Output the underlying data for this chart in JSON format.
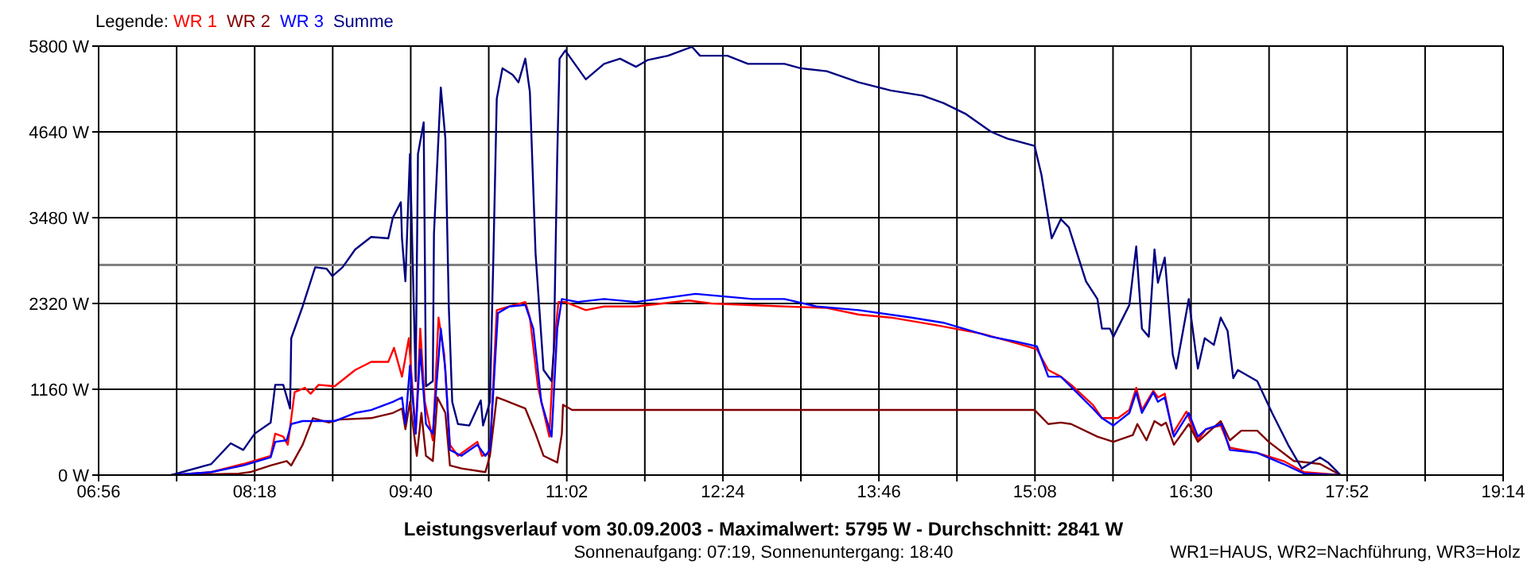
{
  "chart_data": {
    "type": "line",
    "title": "Leistungsverlauf vom 30.09.2003 - Maximalwert: 5795 W - Durchschnitt: 2841 W",
    "subtitle": "Sonnenaufgang: 07:19, Sonnenuntergang: 18:40",
    "legend_title": "Legende:",
    "legend": "top left",
    "grid": true,
    "annotations": [
      "WR1=HAUS, WR2=Nachführung, WR3=Holz"
    ],
    "xlim": [
      6.9333,
      19.2333
    ],
    "xticks": [
      {
        "value": 6.9333,
        "label": "06:56"
      },
      {
        "value": 7.6167,
        "label": null
      },
      {
        "value": 8.3,
        "label": "08:18"
      },
      {
        "value": 8.9833,
        "label": null
      },
      {
        "value": 9.6667,
        "label": "09:40"
      },
      {
        "value": 10.35,
        "label": null
      },
      {
        "value": 11.0333,
        "label": "11:02"
      },
      {
        "value": 11.7167,
        "label": null
      },
      {
        "value": 12.4,
        "label": "12:24"
      },
      {
        "value": 13.0833,
        "label": null
      },
      {
        "value": 13.7667,
        "label": "13:46"
      },
      {
        "value": 14.45,
        "label": null
      },
      {
        "value": 15.1333,
        "label": "15:08"
      },
      {
        "value": 15.8167,
        "label": null
      },
      {
        "value": 16.5,
        "label": "16:30"
      },
      {
        "value": 17.1833,
        "label": null
      },
      {
        "value": 17.8667,
        "label": "17:52"
      },
      {
        "value": 18.55,
        "label": null
      },
      {
        "value": 19.2333,
        "label": "19:14"
      }
    ],
    "ylim": [
      0,
      5800
    ],
    "yticks": [
      {
        "value": 0,
        "label": "0 W"
      },
      {
        "value": 1160,
        "label": "1160 W"
      },
      {
        "value": 2320,
        "label": "2320 W"
      },
      {
        "value": 3480,
        "label": "3480 W"
      },
      {
        "value": 4640,
        "label": "4640 W"
      },
      {
        "value": 5800,
        "label": "5800 W"
      }
    ],
    "ref_lines": [
      {
        "axis": "y",
        "value": 2841,
        "color": "#808080"
      }
    ],
    "series": [
      {
        "name": "WR 1",
        "color": "#ff0000",
        "x": [
          7.57,
          7.92,
          8.2,
          8.44,
          8.48,
          8.55,
          8.59,
          8.65,
          8.74,
          8.79,
          8.86,
          9.0,
          9.18,
          9.32,
          9.47,
          9.52,
          9.59,
          9.65,
          9.71,
          9.75,
          9.79,
          9.86,
          9.91,
          9.96,
          10.01,
          10.08,
          10.25,
          10.29,
          10.36,
          10.42,
          10.53,
          10.67,
          10.71,
          10.78,
          10.88,
          10.92,
          10.96,
          11.02,
          11.2,
          11.36,
          11.64,
          12.1,
          12.3,
          12.94,
          13.31,
          13.59,
          13.87,
          14.29,
          14.67,
          14.98,
          15.15,
          15.25,
          15.36,
          15.45,
          15.64,
          15.72,
          15.86,
          15.96,
          16.02,
          16.07,
          16.17,
          16.21,
          16.27,
          16.34,
          16.46,
          16.56,
          16.63,
          16.76,
          16.84,
          17.08,
          17.31,
          17.49,
          17.81
        ],
        "values": [
          0,
          40,
          150,
          260,
          560,
          520,
          410,
          1120,
          1180,
          1100,
          1220,
          1200,
          1420,
          1530,
          1530,
          1720,
          1330,
          1850,
          560,
          1980,
          990,
          470,
          2130,
          1630,
          410,
          260,
          450,
          260,
          300,
          2230,
          2280,
          2340,
          2130,
          1200,
          520,
          1700,
          2340,
          2340,
          2230,
          2280,
          2280,
          2360,
          2320,
          2280,
          2260,
          2170,
          2130,
          2020,
          1910,
          1780,
          1700,
          1420,
          1330,
          1220,
          950,
          770,
          770,
          880,
          1180,
          880,
          1140,
          1050,
          1100,
          560,
          860,
          470,
          620,
          670,
          370,
          300,
          190,
          40,
          0
        ]
      },
      {
        "name": "WR 2",
        "color": "#800000",
        "x": [
          7.57,
          8.16,
          8.26,
          8.44,
          8.58,
          8.62,
          8.72,
          8.81,
          8.95,
          9.04,
          9.32,
          9.51,
          9.59,
          9.62,
          9.66,
          9.72,
          9.76,
          9.8,
          9.86,
          9.9,
          9.97,
          10.01,
          10.11,
          10.32,
          10.36,
          10.42,
          10.49,
          10.67,
          10.76,
          10.83,
          10.95,
          10.99,
          11.0,
          11.08,
          11.36,
          12.34,
          13.87,
          15.13,
          15.25,
          15.36,
          15.45,
          15.68,
          15.82,
          15.99,
          16.03,
          16.11,
          16.18,
          16.24,
          16.28,
          16.35,
          16.48,
          16.56,
          16.76,
          16.84,
          16.94,
          17.08,
          17.18,
          17.4,
          17.63,
          17.81
        ],
        "values": [
          0,
          20,
          40,
          130,
          190,
          130,
          410,
          770,
          710,
          750,
          770,
          840,
          900,
          620,
          990,
          260,
          840,
          260,
          190,
          1050,
          840,
          130,
          90,
          40,
          260,
          1050,
          1010,
          900,
          560,
          260,
          170,
          560,
          950,
          880,
          880,
          880,
          880,
          880,
          690,
          710,
          690,
          520,
          450,
          540,
          690,
          470,
          730,
          670,
          710,
          410,
          690,
          450,
          730,
          470,
          600,
          600,
          450,
          190,
          150,
          0
        ]
      },
      {
        "name": "WR 3",
        "color": "#0000ff",
        "x": [
          7.57,
          7.92,
          8.2,
          8.44,
          8.48,
          8.58,
          8.62,
          8.72,
          8.86,
          9.0,
          9.18,
          9.32,
          9.51,
          9.59,
          9.62,
          9.66,
          9.71,
          9.75,
          9.8,
          9.86,
          9.93,
          9.97,
          10.01,
          10.11,
          10.25,
          10.32,
          10.36,
          10.43,
          10.53,
          10.67,
          10.74,
          10.81,
          10.9,
          10.95,
          10.99,
          11.13,
          11.36,
          11.64,
          12.16,
          12.66,
          12.94,
          13.22,
          13.59,
          14.05,
          14.33,
          14.75,
          14.98,
          15.15,
          15.25,
          15.36,
          15.64,
          15.72,
          15.82,
          15.96,
          16.02,
          16.07,
          16.17,
          16.21,
          16.27,
          16.35,
          16.48,
          16.56,
          16.63,
          16.77,
          16.84,
          17.08,
          17.31,
          17.49,
          17.81
        ],
        "values": [
          0,
          40,
          130,
          240,
          450,
          470,
          690,
          730,
          730,
          730,
          840,
          880,
          990,
          1050,
          690,
          1480,
          560,
          1700,
          690,
          560,
          1980,
          1420,
          340,
          260,
          410,
          260,
          340,
          2190,
          2280,
          2300,
          1980,
          990,
          520,
          1980,
          2380,
          2340,
          2380,
          2340,
          2450,
          2380,
          2380,
          2280,
          2230,
          2130,
          2060,
          1870,
          1800,
          1740,
          1330,
          1330,
          900,
          770,
          670,
          840,
          1120,
          840,
          1120,
          990,
          1050,
          520,
          840,
          520,
          620,
          690,
          340,
          300,
          150,
          20,
          0
        ]
      },
      {
        "name": "Summe",
        "color": "#000080",
        "x": [
          7.57,
          7.92,
          8.09,
          8.2,
          8.3,
          8.44,
          8.48,
          8.55,
          8.61,
          8.62,
          8.72,
          8.83,
          8.93,
          8.98,
          9.07,
          9.18,
          9.32,
          9.47,
          9.51,
          9.58,
          9.59,
          9.62,
          9.66,
          9.71,
          9.73,
          9.78,
          9.8,
          9.86,
          9.87,
          9.93,
          9.97,
          10.0,
          10.03,
          10.08,
          10.18,
          10.28,
          10.3,
          10.36,
          10.39,
          10.42,
          10.47,
          10.56,
          10.61,
          10.67,
          10.71,
          10.76,
          10.83,
          10.9,
          10.92,
          10.95,
          10.97,
          11.02,
          11.2,
          11.36,
          11.5,
          11.64,
          11.74,
          11.92,
          12.13,
          12.2,
          12.3,
          12.44,
          12.62,
          12.94,
          13.08,
          13.31,
          13.59,
          13.87,
          14.15,
          14.33,
          14.53,
          14.75,
          14.89,
          15.13,
          15.19,
          15.25,
          15.28,
          15.36,
          15.43,
          15.58,
          15.68,
          15.72,
          15.79,
          15.82,
          15.96,
          16.02,
          16.07,
          16.13,
          16.18,
          16.21,
          16.27,
          16.34,
          16.37,
          16.48,
          16.56,
          16.62,
          16.7,
          16.76,
          16.82,
          16.87,
          16.91,
          17.08,
          17.21,
          17.35,
          17.47,
          17.63,
          17.7,
          17.81
        ],
        "values": [
          0,
          150,
          430,
          340,
          560,
          710,
          1220,
          1220,
          900,
          1850,
          2280,
          2810,
          2790,
          2690,
          2810,
          3050,
          3220,
          3200,
          3480,
          3690,
          3200,
          2620,
          4340,
          1270,
          4340,
          4770,
          1200,
          1270,
          3260,
          5240,
          4550,
          2280,
          990,
          690,
          670,
          1010,
          670,
          990,
          2920,
          5090,
          5500,
          5410,
          5310,
          5630,
          5180,
          2990,
          1420,
          1270,
          1700,
          4340,
          5630,
          5740,
          5350,
          5560,
          5630,
          5520,
          5610,
          5670,
          5790,
          5670,
          5670,
          5670,
          5560,
          5560,
          5500,
          5460,
          5310,
          5200,
          5130,
          5030,
          4880,
          4640,
          4550,
          4450,
          4060,
          3480,
          3200,
          3460,
          3350,
          2620,
          2380,
          1980,
          1980,
          1870,
          2300,
          3090,
          1980,
          1870,
          3050,
          2600,
          2940,
          1630,
          1440,
          2380,
          1440,
          1850,
          1760,
          2130,
          1950,
          1310,
          1420,
          1270,
          840,
          410,
          90,
          240,
          170,
          0
        ]
      }
    ]
  }
}
